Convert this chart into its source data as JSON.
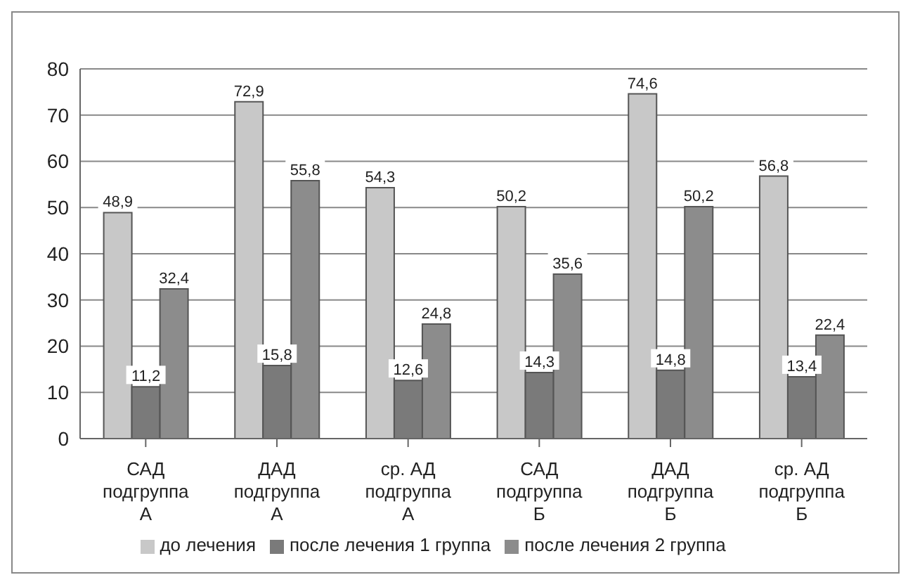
{
  "chart_data": {
    "type": "bar",
    "categories": [
      "САД\nподгруппа\nА",
      "ДАД\nподгруппа\nА",
      "ср. АД\nподгруппа\nА",
      "САД\nподгруппа\nБ",
      "ДАД\nподгруппа\nБ",
      "ср. АД\nподгруппа\nБ"
    ],
    "series": [
      {
        "name": "до лечения",
        "color": "#c8c8c8",
        "values": [
          48.9,
          72.9,
          54.3,
          50.2,
          74.6,
          56.8
        ],
        "value_labels": [
          "48,9",
          "72,9",
          "54,3",
          "50,2",
          "74,6",
          "56,8"
        ]
      },
      {
        "name": "после лечения 1 группа",
        "color": "#7a7a7a",
        "values": [
          11.2,
          15.8,
          12.6,
          14.3,
          14.8,
          13.4
        ],
        "value_labels": [
          "11,2",
          "15,8",
          "12,6",
          "14,3",
          "14,8",
          "13,4"
        ]
      },
      {
        "name": "после лечения 2 группа",
        "color": "#8c8c8c",
        "values": [
          32.4,
          55.8,
          24.8,
          35.6,
          50.2,
          22.4
        ],
        "value_labels": [
          "32,4",
          "55,8",
          "24,8",
          "35,6",
          "50,2",
          "22,4"
        ]
      }
    ],
    "ylim": [
      0,
      80
    ],
    "yticks": [
      0,
      10,
      20,
      30,
      40,
      50,
      60,
      70,
      80
    ],
    "grid": "y",
    "legend": "bottom"
  }
}
